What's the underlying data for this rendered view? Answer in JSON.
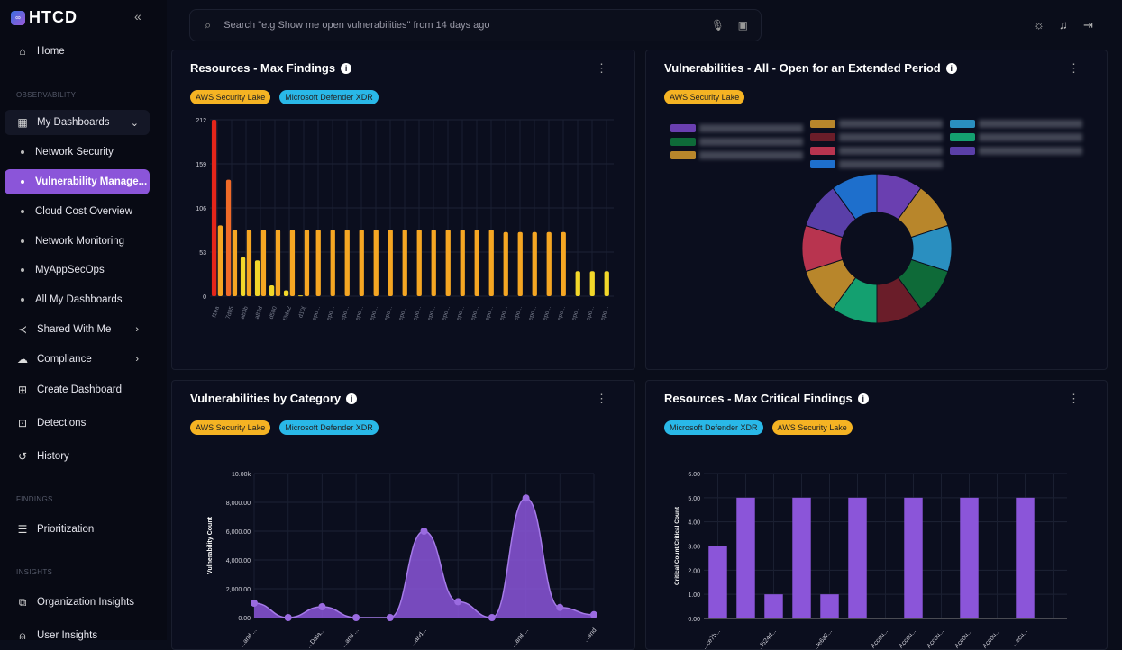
{
  "sidebar": {
    "brand": "HTCD",
    "home": "Home",
    "sections": {
      "observability": "OBSERVABILITY",
      "findings": "FINDINGS",
      "insights": "INSIGHTS"
    },
    "my_dashboards": "My Dashboards",
    "dashboards": [
      "Network Security",
      "Vulnerability Manage...",
      "Cloud Cost Overview",
      "Network Monitoring",
      "MyAppSecOps",
      "All My Dashboards"
    ],
    "shared": "Shared With Me",
    "compliance": "Compliance",
    "create": "Create Dashboard",
    "detections": "Detections",
    "history": "History",
    "prioritization": "Prioritization",
    "org_insights": "Organization Insights",
    "user_insights": "User Insights"
  },
  "header": {
    "search_placeholder": "Search \"e.g Show me open vulnerabilities\" from 14 days ago"
  },
  "colors": {
    "accent": "#8b55d9",
    "aws_chip": "#f5b323",
    "ms_chip": "#29b8e8"
  },
  "cards": [
    {
      "title": "Resources - Max Findings",
      "chips": [
        "AWS Security Lake",
        "Microsoft Defender XDR"
      ]
    },
    {
      "title": "Vulnerabilities - All - Open for an Extended Period",
      "chips": [
        "AWS Security Lake"
      ]
    },
    {
      "title": "Vulnerabilities by Category",
      "chips": [
        "AWS Security Lake",
        "Microsoft Defender XDR"
      ]
    },
    {
      "title": "Resources - Max Critical Findings",
      "chips": [
        "Microsoft Defender XDR",
        "AWS Security Lake"
      ]
    }
  ],
  "chart_data": [
    {
      "type": "bar",
      "ylim": [
        0,
        212
      ],
      "yticks": [
        "0",
        "53",
        "106",
        "159",
        "212"
      ],
      "grid": true,
      "categories": [
        "f1ea",
        "7d85",
        "ab3b",
        "a82d",
        "d580",
        "f3da2",
        "d10(",
        "repo...",
        "repo...",
        "repo...",
        "repo...",
        "repo...",
        "repo...",
        "repo...",
        "repo...",
        "repo...",
        "repo...",
        "repo...",
        "repo...",
        "repo...",
        "repo...",
        "repo...",
        "repo...",
        "repo...",
        "repo...",
        "repo...",
        "repo...",
        "repo..."
      ],
      "series": [
        {
          "values": [
            212,
            140,
            47,
            43,
            13,
            7,
            1,
            null,
            null,
            null,
            null,
            null,
            null,
            null,
            null,
            null,
            null,
            null,
            null,
            null,
            null,
            null,
            null,
            null,
            null,
            null,
            null,
            null
          ]
        },
        {
          "values": [
            85,
            80,
            80,
            80,
            80,
            80,
            80,
            80,
            80,
            80,
            80,
            80,
            80,
            80,
            80,
            80,
            80,
            80,
            80,
            80,
            77,
            77,
            77,
            77,
            77,
            30,
            30,
            30
          ]
        }
      ]
    },
    {
      "type": "pie",
      "donut": true,
      "legend": "top",
      "values": [
        1,
        1,
        1,
        1,
        1,
        1,
        1,
        1,
        1,
        1
      ],
      "colors": [
        "#6a3fb0",
        "#b8862b",
        "#2a8fc0",
        "#0e6a38",
        "#6a1d29",
        "#14a070",
        "#b8862b",
        "#b8344f",
        "#5a3fa8",
        "#1e6fcc"
      ],
      "legend_colors": [
        "#6a3fb0",
        "#0e6a38",
        "#b8862b",
        "#b8862b",
        "#6a1d29",
        "#b8344f",
        "#1e6fcc",
        "#2a8fc0",
        "#14a070",
        "#5a3fa8"
      ]
    },
    {
      "type": "area",
      "ylabel": "Vulnerability Count",
      "ylim": [
        0,
        10000
      ],
      "grid": true,
      "yticks": [
        "0.00",
        "2,000.00",
        "4,000.00",
        "6,000.00",
        "8,000.00",
        "10.00k"
      ],
      "categories": [
        "...and ...",
        "",
        "...Data...",
        "...and ...",
        "",
        "...and...",
        "",
        "",
        "...and ...",
        "",
        "...and"
      ],
      "values": [
        1000,
        0,
        750,
        0,
        0,
        6000,
        1100,
        0,
        8300,
        700,
        200
      ],
      "color": "#8b55d9"
    },
    {
      "type": "bar",
      "ylabel": "Critical Count/Critical Count",
      "ylim": [
        0,
        6
      ],
      "grid": true,
      "yticks": [
        "0.00",
        "1.00",
        "2.00",
        "3.00",
        "4.00",
        "5.00",
        "6.00"
      ],
      "categories": [
        "...ce7b...",
        "",
        "...f524d...",
        "",
        "...fe6a2...",
        "",
        "Accou...",
        "Accou...",
        "Accou...",
        "Accou...",
        "Accou...",
        "...ecu...",
        ""
      ],
      "values": [
        3,
        5,
        1,
        5,
        1,
        5,
        0,
        5,
        0,
        5,
        0,
        5,
        0
      ],
      "color": "#8b55d9"
    }
  ]
}
